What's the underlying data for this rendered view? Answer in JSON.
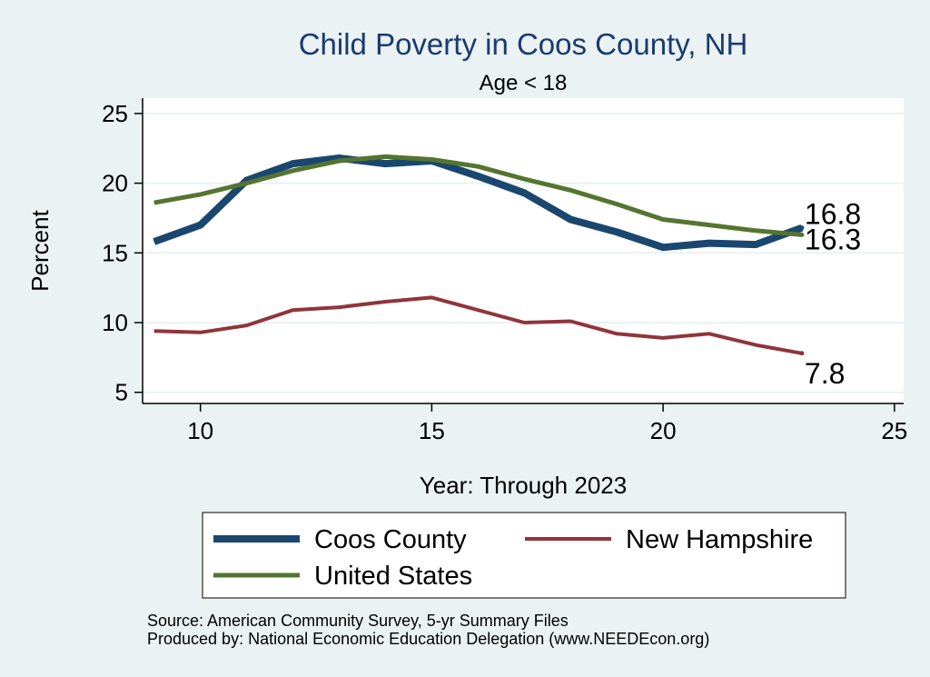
{
  "chart_data": {
    "type": "line",
    "title": "Child Poverty in Coos County, NH",
    "subtitle": "Age < 18",
    "xlabel": "Year: Through 2023",
    "ylabel": "Percent",
    "xlim": [
      8.75,
      25.2
    ],
    "ylim": [
      4.2,
      26.1
    ],
    "x_ticks": [
      10,
      15,
      20,
      25
    ],
    "y_ticks": [
      5,
      10,
      15,
      20,
      25
    ],
    "grid": true,
    "legend_position": "bottom",
    "x": [
      9,
      10,
      11,
      12,
      13,
      14,
      15,
      16,
      17,
      18,
      19,
      20,
      21,
      22,
      23
    ],
    "series": [
      {
        "name": "Coos County",
        "color": "#1a476f",
        "values": [
          15.8,
          17.0,
          20.2,
          21.4,
          21.8,
          21.4,
          21.6,
          20.5,
          19.3,
          17.4,
          16.5,
          15.4,
          15.7,
          15.6,
          16.8
        ],
        "end_label": "16.8"
      },
      {
        "name": "New Hampshire",
        "color": "#90353b",
        "values": [
          9.4,
          9.3,
          9.8,
          10.9,
          11.1,
          11.5,
          11.8,
          10.9,
          10.0,
          10.1,
          9.2,
          8.9,
          9.2,
          8.4,
          7.8
        ],
        "end_label": "7.8"
      },
      {
        "name": "United States",
        "color": "#55752f",
        "values": [
          18.6,
          19.2,
          20.0,
          20.9,
          21.6,
          21.9,
          21.7,
          21.2,
          20.3,
          19.5,
          18.5,
          17.4,
          17.0,
          16.6,
          16.3
        ],
        "end_label": "16.3"
      }
    ]
  },
  "notes": {
    "source": "Source: American Community Survey, 5-yr Summary Files",
    "produced_by": "Produced by: National Economic Education Delegation (www.NEEDEcon.org)"
  }
}
